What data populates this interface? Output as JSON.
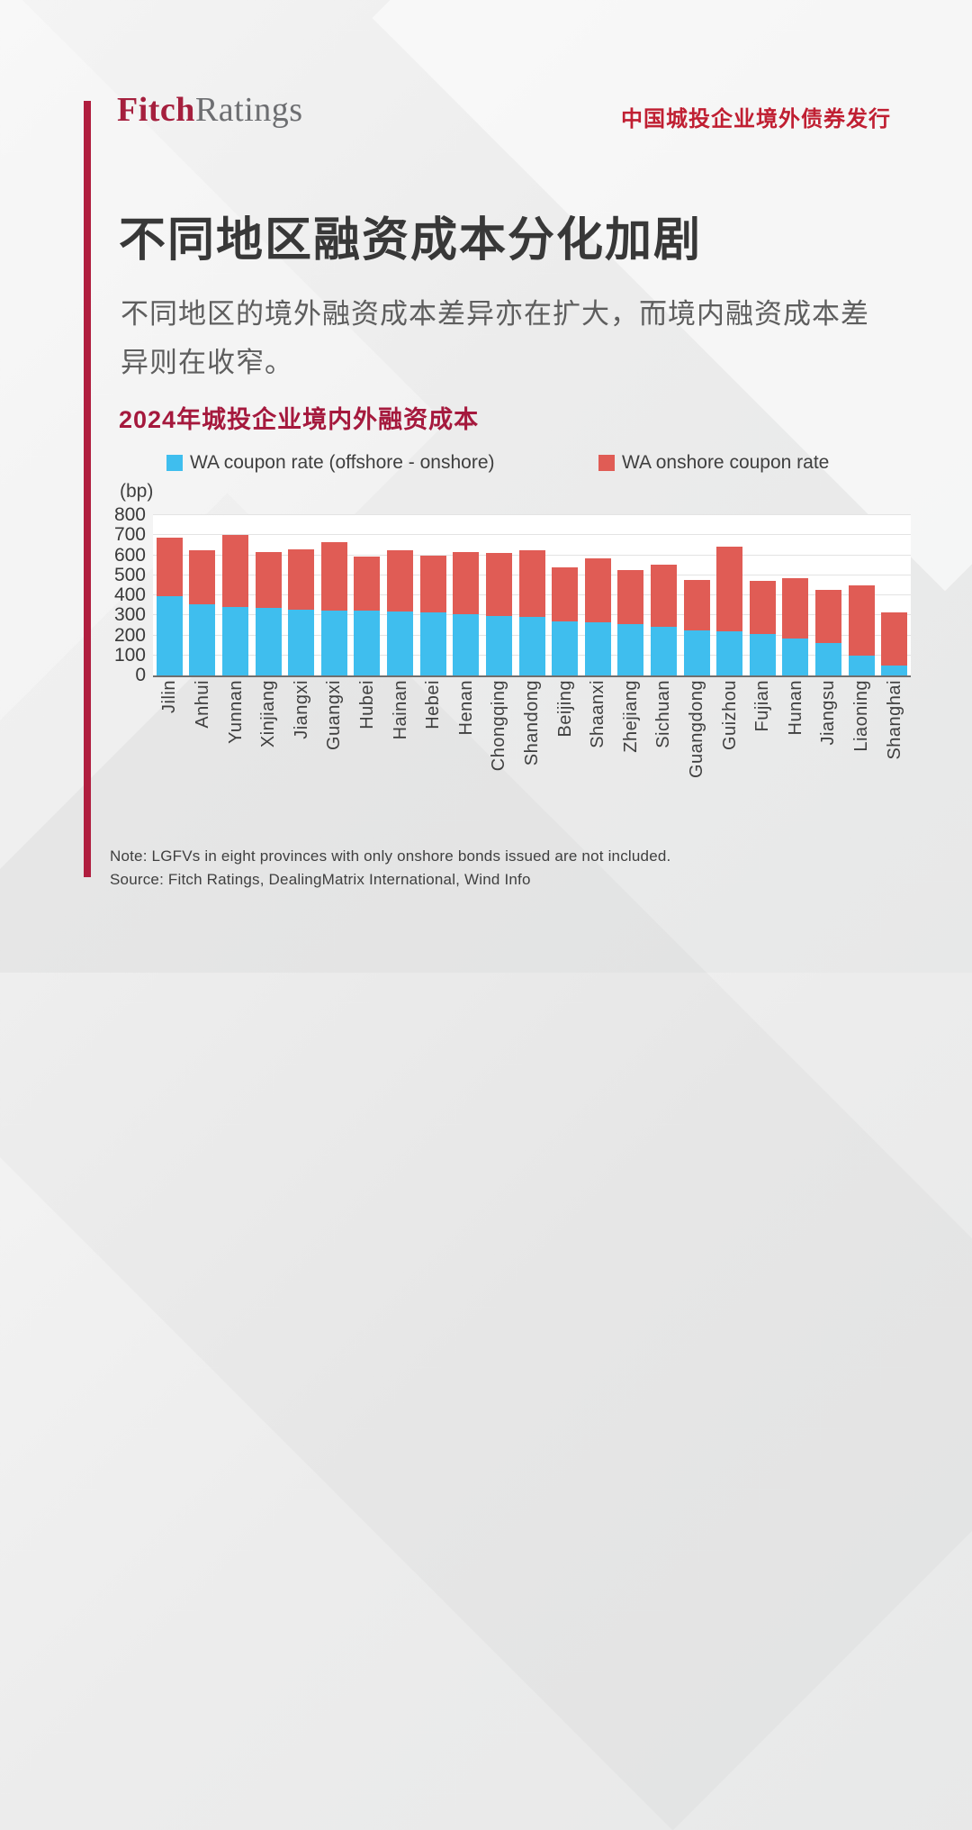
{
  "header": {
    "logo_part1": "Fitch",
    "logo_part2": "Ratings",
    "topic": "中国城投企业境外债券发行"
  },
  "main": {
    "title": "不同地区融资成本分化加剧",
    "subtitle": "不同地区的境外融资成本差异亦在扩大，而境内融资成本差异则在收窄。"
  },
  "chart_data": {
    "type": "bar",
    "stacked": true,
    "title": "2024年城投企业境内外融资成本",
    "unit_label": "(bp)",
    "ylabel": "(bp)",
    "ylim": [
      0,
      800
    ],
    "ytick_step": 100,
    "grid": true,
    "legend_position": "top",
    "categories": [
      "Jilin",
      "Anhui",
      "Yunnan",
      "Xinjiang",
      "Jiangxi",
      "Guangxi",
      "Hubei",
      "Hainan",
      "Hebei",
      "Henan",
      "Chongqing",
      "Shandong",
      "Beijing",
      "Shaanxi",
      "Zhejiang",
      "Sichuan",
      "Guangdong",
      "Guizhou",
      "Fujian",
      "Hunan",
      "Jiangsu",
      "Liaoning",
      "Shanghai"
    ],
    "series": [
      {
        "key": "offshore-onshore-diff",
        "name": "WA coupon rate (offshore - onshore)",
        "color": "#3fbeee",
        "values": [
          395,
          355,
          340,
          335,
          330,
          325,
          325,
          320,
          315,
          305,
          295,
          290,
          270,
          265,
          255,
          245,
          225,
          220,
          205,
          185,
          160,
          100,
          50
        ]
      },
      {
        "key": "onshore-coupon",
        "name": "WA onshore coupon rate",
        "color": "#e05c55",
        "values": [
          295,
          270,
          360,
          280,
          300,
          340,
          270,
          305,
          285,
          310,
          315,
          335,
          270,
          320,
          270,
          310,
          250,
          425,
          265,
          300,
          265,
          350,
          265
        ]
      }
    ]
  },
  "footer": {
    "note": "Note: LGFVs in eight provinces with only onshore bonds issued are not included.",
    "source": "Source: Fitch Ratings, DealingMatrix International, Wind Info"
  },
  "colors": {
    "brand_red": "#a51f3d",
    "topic_red": "#c01f32",
    "accent_bar": "#b01e3f",
    "series_blue": "#3fbeee",
    "series_red": "#e05c55"
  }
}
